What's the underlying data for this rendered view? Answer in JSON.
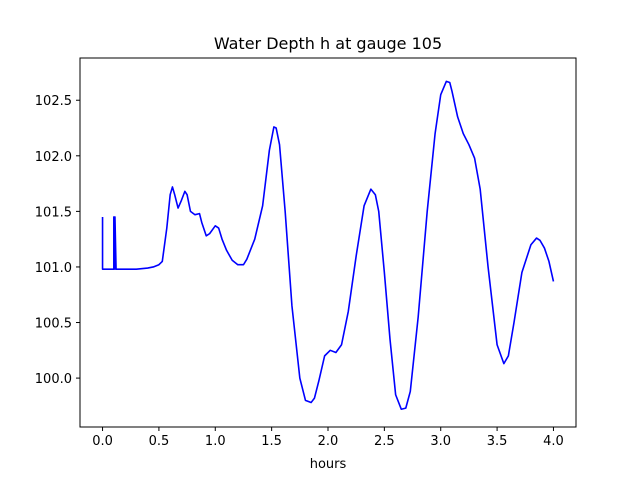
{
  "chart_data": {
    "type": "line",
    "title": "Water Depth h at gauge 105",
    "xlabel": "hours",
    "ylabel": "",
    "xlim": [
      -0.2,
      4.2
    ],
    "ylim": [
      99.56,
      102.88
    ],
    "xticks": [
      0.0,
      0.5,
      1.0,
      1.5,
      2.0,
      2.5,
      3.0,
      3.5,
      4.0
    ],
    "xtick_labels": [
      "0.0",
      "0.5",
      "1.0",
      "1.5",
      "2.0",
      "2.5",
      "3.0",
      "3.5",
      "4.0"
    ],
    "yticks": [
      100.0,
      100.5,
      101.0,
      101.5,
      102.0,
      102.5
    ],
    "ytick_labels": [
      "100.0",
      "100.5",
      "101.0",
      "101.5",
      "102.0",
      "102.5"
    ],
    "grid": false,
    "legend": "none",
    "series": [
      {
        "color": "#0000ff",
        "x": [
          0.0,
          0.0,
          0.0,
          0.1,
          0.1,
          0.11,
          0.11,
          0.12,
          0.12,
          0.2,
          0.3,
          0.4,
          0.45,
          0.5,
          0.53,
          0.57,
          0.6,
          0.62,
          0.64,
          0.67,
          0.7,
          0.73,
          0.75,
          0.78,
          0.82,
          0.86,
          0.88,
          0.92,
          0.95,
          1.0,
          1.03,
          1.06,
          1.1,
          1.15,
          1.2,
          1.25,
          1.28,
          1.35,
          1.42,
          1.48,
          1.52,
          1.54,
          1.57,
          1.62,
          1.68,
          1.75,
          1.8,
          1.85,
          1.88,
          1.92,
          1.97,
          2.02,
          2.07,
          2.12,
          2.18,
          2.25,
          2.32,
          2.38,
          2.42,
          2.45,
          2.5,
          2.55,
          2.6,
          2.65,
          2.69,
          2.73,
          2.8,
          2.88,
          2.95,
          3.0,
          3.05,
          3.08,
          3.1,
          3.15,
          3.2,
          3.25,
          3.3,
          3.35,
          3.42,
          3.5,
          3.56,
          3.6,
          3.65,
          3.72,
          3.8,
          3.85,
          3.88,
          3.92,
          3.96,
          4.0
        ],
        "y": [
          101.45,
          100.98,
          100.98,
          100.98,
          101.45,
          100.98,
          101.45,
          100.98,
          100.98,
          100.98,
          100.98,
          100.99,
          101.0,
          101.02,
          101.05,
          101.35,
          101.65,
          101.72,
          101.65,
          101.53,
          101.6,
          101.68,
          101.65,
          101.5,
          101.47,
          101.48,
          101.4,
          101.28,
          101.3,
          101.37,
          101.35,
          101.25,
          101.15,
          101.06,
          101.02,
          101.02,
          101.07,
          101.25,
          101.55,
          102.05,
          102.26,
          102.25,
          102.1,
          101.5,
          100.65,
          100.0,
          99.8,
          99.78,
          99.82,
          99.98,
          100.2,
          100.25,
          100.23,
          100.3,
          100.6,
          101.1,
          101.55,
          101.7,
          101.65,
          101.5,
          100.95,
          100.35,
          99.85,
          99.72,
          99.73,
          99.88,
          100.55,
          101.5,
          102.2,
          102.55,
          102.67,
          102.66,
          102.58,
          102.35,
          102.2,
          102.1,
          101.98,
          101.7,
          101.0,
          100.3,
          100.13,
          100.2,
          100.5,
          100.95,
          101.2,
          101.26,
          101.24,
          101.17,
          101.05,
          100.87
        ]
      }
    ]
  }
}
